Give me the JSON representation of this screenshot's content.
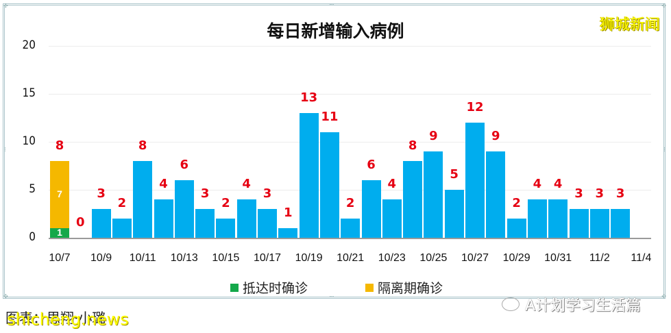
{
  "chart_data": {
    "type": "bar",
    "stacked": true,
    "title": "每日新增输入病例",
    "xlabel": "",
    "ylabel": "",
    "ylim": [
      0,
      20
    ],
    "yticks": [
      "20",
      "15",
      "10",
      "5",
      "0"
    ],
    "grid": true,
    "legend_position": "bottom",
    "categories": [
      "10/7",
      "10/8",
      "10/9",
      "10/10",
      "10/11",
      "10/12",
      "10/13",
      "10/14",
      "10/15",
      "10/16",
      "10/17",
      "10/18",
      "10/19",
      "10/20",
      "10/21",
      "10/22",
      "10/23",
      "10/24",
      "10/25",
      "10/26",
      "10/27",
      "10/28",
      "10/29",
      "10/30",
      "10/31",
      "11/1",
      "11/2",
      "11/3",
      "11/4"
    ],
    "x_tick_labels": [
      "10/7",
      "10/9",
      "10/11",
      "10/13",
      "10/15",
      "10/17",
      "10/19",
      "10/21",
      "10/23",
      "10/25",
      "10/27",
      "10/29",
      "10/31",
      "11/2",
      "11/4"
    ],
    "totals": [
      8,
      0,
      3,
      2,
      8,
      4,
      6,
      3,
      2,
      4,
      3,
      1,
      13,
      11,
      2,
      6,
      4,
      8,
      9,
      5,
      12,
      9,
      2,
      4,
      4,
      3,
      3,
      3,
      null
    ],
    "series": [
      {
        "name": "抵达时确诊",
        "color": "#14a84a",
        "values": [
          1,
          0,
          0,
          0,
          0,
          0,
          0,
          0,
          0,
          0,
          0,
          0,
          0,
          0,
          0,
          0,
          0,
          0,
          0,
          0,
          0,
          0,
          0,
          0,
          0,
          0,
          0,
          0,
          null
        ]
      },
      {
        "name": "隔离期确诊",
        "color": "#f5b800",
        "values": [
          7,
          0,
          0,
          0,
          0,
          0,
          0,
          0,
          0,
          0,
          0,
          0,
          0,
          0,
          0,
          0,
          0,
          0,
          0,
          0,
          0,
          0,
          0,
          0,
          0,
          0,
          0,
          0,
          null
        ]
      },
      {
        "name": "(unlabeled)",
        "color": "#00adee",
        "values": [
          0,
          0,
          3,
          2,
          8,
          4,
          6,
          3,
          2,
          4,
          3,
          1,
          13,
          11,
          2,
          6,
          4,
          8,
          9,
          5,
          12,
          9,
          2,
          4,
          4,
          3,
          3,
          3,
          null
        ]
      }
    ],
    "bar_inner_labels": [
      {
        "category": "10/7",
        "series": "抵达时确诊",
        "text": "1"
      },
      {
        "category": "10/7",
        "series": "隔离期确诊",
        "text": "7"
      }
    ]
  },
  "title": "每日新增输入病例",
  "brand": "狮城新闻",
  "legend": [
    {
      "label": "抵达时确诊",
      "color": "#14a84a"
    },
    {
      "label": "隔离期确诊",
      "color": "#f5b800"
    }
  ],
  "credit": "图表：思翔·小璐",
  "watermark_en": "shicheng.news",
  "watermark_cn": "A计划学习生活篇",
  "colors": {
    "bar": "#00adee",
    "value_label": "#e60012",
    "frame": "#a9c3c9"
  }
}
